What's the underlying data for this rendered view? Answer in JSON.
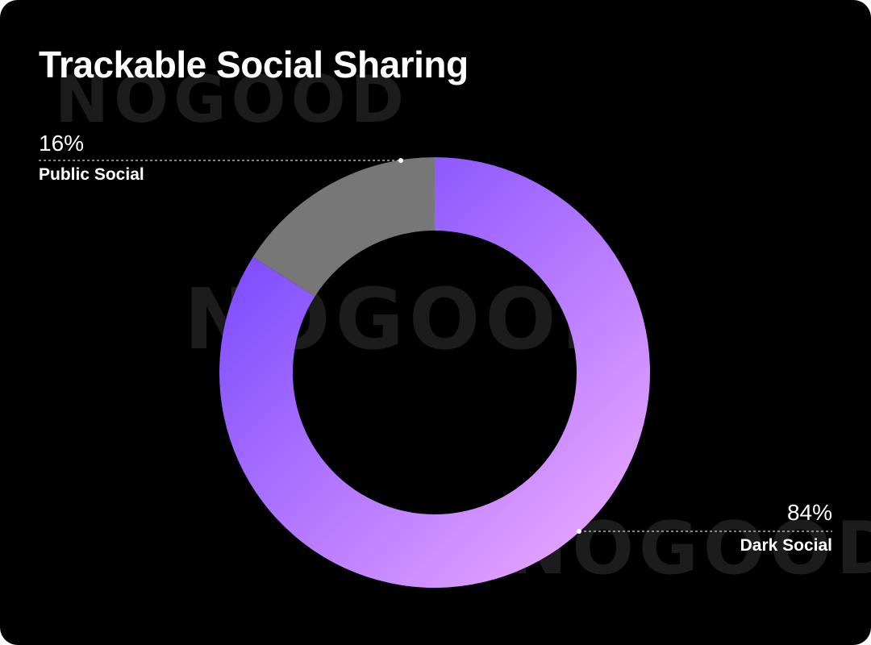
{
  "watermark_text": "NOGOOD",
  "colors": {
    "background": "#000000",
    "public_social": "#777777",
    "dark_social_gradient_start": "#6b3cff",
    "dark_social_gradient_end": "#f5b0ff",
    "text": "#ffffff"
  },
  "chart_data": {
    "type": "pie",
    "variant": "donut",
    "title": "Trackable Social Sharing",
    "slices": [
      {
        "label": "Public Social",
        "value": 16,
        "value_label": "16%",
        "color": "#777777"
      },
      {
        "label": "Dark Social",
        "value": 84,
        "value_label": "84%",
        "color": "gradient-purple-pink"
      }
    ]
  }
}
